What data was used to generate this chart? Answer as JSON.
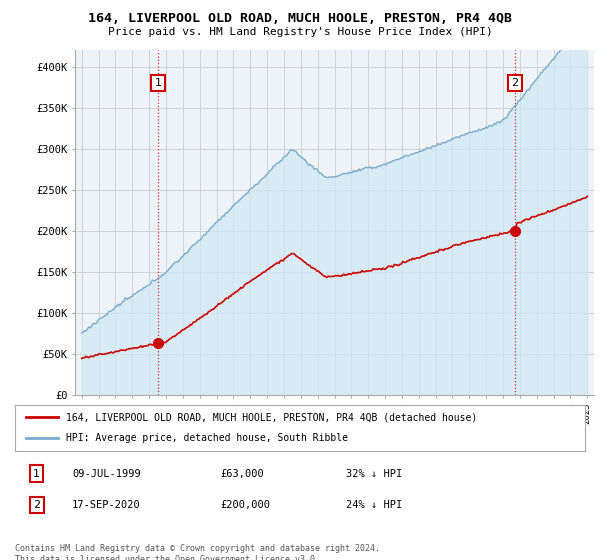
{
  "title1": "164, LIVERPOOL OLD ROAD, MUCH HOOLE, PRESTON, PR4 4QB",
  "title2": "Price paid vs. HM Land Registry's House Price Index (HPI)",
  "ylim": [
    0,
    420000
  ],
  "yticks": [
    0,
    50000,
    100000,
    150000,
    200000,
    250000,
    300000,
    350000,
    400000
  ],
  "ytick_labels": [
    "£0",
    "£50K",
    "£100K",
    "£150K",
    "£200K",
    "£250K",
    "£300K",
    "£350K",
    "£400K"
  ],
  "legend_red": "164, LIVERPOOL OLD ROAD, MUCH HOOLE, PRESTON, PR4 4QB (detached house)",
  "legend_blue": "HPI: Average price, detached house, South Ribble",
  "sale1_date": "09-JUL-1999",
  "sale1_price": "£63,000",
  "sale1_hpi": "32% ↓ HPI",
  "sale1_year": 1999.53,
  "sale1_value": 63000,
  "sale2_date": "17-SEP-2020",
  "sale2_price": "£200,000",
  "sale2_hpi": "24% ↓ HPI",
  "sale2_year": 2020.71,
  "sale2_value": 200000,
  "red_color": "#cc0000",
  "blue_color": "#7aacce",
  "blue_fill": "#d0e8f5",
  "bg_color": "#f0f4f8",
  "plot_bg": "#eef3f8",
  "grid_color": "#cccccc",
  "footer": "Contains HM Land Registry data © Crown copyright and database right 2024.\nThis data is licensed under the Open Government Licence v3.0.",
  "vline_color": "#cc0000"
}
